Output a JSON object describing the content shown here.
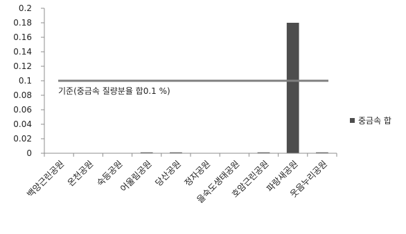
{
  "chart_data": {
    "type": "bar",
    "categories": [
      "백양근린공원",
      "온천공원",
      "숙등공원",
      "어울림공원",
      "당산공원",
      "정자공원",
      "을숙도생태공원",
      "호암근린공원",
      "파랑새공원",
      "웃음누리공원"
    ],
    "series": [
      {
        "name": "중금속 합",
        "values": [
          0,
          0,
          0,
          0.0012,
          0.0012,
          0,
          0,
          0.0012,
          0.18,
          0.0012
        ],
        "color": "#4d4d4d"
      }
    ],
    "reference_line": {
      "value": 0.1,
      "label": "기준(중금속 질량분율 합0.1 %)",
      "color": "#7f7f7f"
    },
    "ylim": [
      0,
      0.2
    ],
    "yticks": [
      "0",
      "0.02",
      "0.04",
      "0.06",
      "0.08",
      "0.1",
      "0.12",
      "0.14",
      "0.16",
      "0.18",
      "0.2"
    ],
    "grid": false,
    "legend": "right"
  }
}
